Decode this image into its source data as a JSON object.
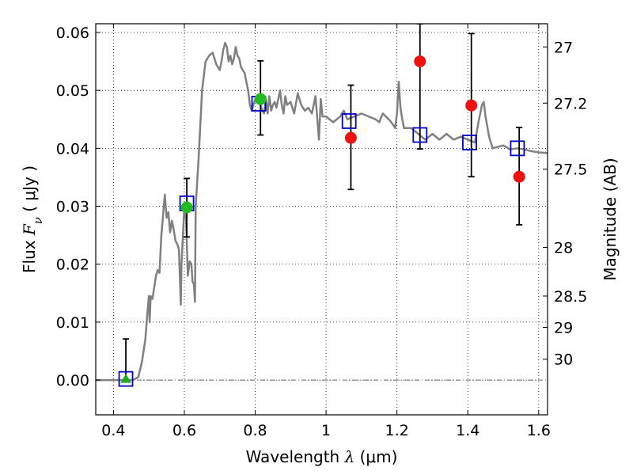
{
  "chart_data": {
    "type": "scatter",
    "xlabel": {
      "prefix": "Wavelength  ",
      "symbol": "λ",
      "unit": " (μm)"
    },
    "ylabel": {
      "prefix": "Flux  ",
      "symbol": "F",
      "subscript": "ν",
      "unit": "  ( μJy )"
    },
    "y2label": "Magnitude (AB)",
    "xlim": [
      0.35,
      1.625
    ],
    "ylim": [
      -0.006,
      0.0615
    ],
    "grid": true,
    "x_ticks": [
      {
        "value": 0.4,
        "label": "0.4"
      },
      {
        "value": 0.6,
        "label": "0.6"
      },
      {
        "value": 0.8,
        "label": "0.8"
      },
      {
        "value": 1.0,
        "label": "1"
      },
      {
        "value": 1.2,
        "label": "1.2"
      },
      {
        "value": 1.4,
        "label": "1.4"
      },
      {
        "value": 1.6,
        "label": "1.6"
      }
    ],
    "y_ticks": [
      {
        "value": 0.0,
        "label": "0.00"
      },
      {
        "value": 0.01,
        "label": "0.01"
      },
      {
        "value": 0.02,
        "label": "0.02"
      },
      {
        "value": 0.03,
        "label": "0.03"
      },
      {
        "value": 0.04,
        "label": "0.04"
      },
      {
        "value": 0.05,
        "label": "0.05"
      },
      {
        "value": 0.06,
        "label": "0.06"
      }
    ],
    "y2_ticks": [
      {
        "flux": 0.0575,
        "label": "27"
      },
      {
        "flux": 0.0478,
        "label": "27.2"
      },
      {
        "flux": 0.0364,
        "label": "27.5"
      },
      {
        "flux": 0.0229,
        "label": "28"
      },
      {
        "flux": 0.0145,
        "label": "28.5"
      },
      {
        "flux": 0.0091,
        "label": "29"
      },
      {
        "flux": 0.0036,
        "label": "30"
      }
    ],
    "series": [
      {
        "kind": "line",
        "color": "#808080",
        "points": [
          [
            0.35,
            0.0
          ],
          [
            0.44,
            0.0
          ],
          [
            0.455,
            0.0
          ],
          [
            0.47,
            0.0005
          ],
          [
            0.48,
            0.003
          ],
          [
            0.49,
            0.007
          ],
          [
            0.495,
            0.011
          ],
          [
            0.5,
            0.0145
          ],
          [
            0.502,
            0.01
          ],
          [
            0.505,
            0.0145
          ],
          [
            0.51,
            0.014
          ],
          [
            0.515,
            0.016
          ],
          [
            0.52,
            0.018
          ],
          [
            0.525,
            0.019
          ],
          [
            0.53,
            0.0185
          ],
          [
            0.535,
            0.025
          ],
          [
            0.54,
            0.0285
          ],
          [
            0.545,
            0.032
          ],
          [
            0.55,
            0.028
          ],
          [
            0.555,
            0.029
          ],
          [
            0.56,
            0.0255
          ],
          [
            0.565,
            0.0275
          ],
          [
            0.57,
            0.026
          ],
          [
            0.575,
            0.024
          ],
          [
            0.58,
            0.0235
          ],
          [
            0.585,
            0.0225
          ],
          [
            0.59,
            0.013
          ],
          [
            0.592,
            0.02
          ],
          [
            0.6,
            0.03
          ],
          [
            0.605,
            0.0275
          ],
          [
            0.61,
            0.018
          ],
          [
            0.615,
            0.0205
          ],
          [
            0.62,
            0.02
          ],
          [
            0.623,
            0.017
          ],
          [
            0.627,
            0.0165
          ],
          [
            0.63,
            0.0135
          ],
          [
            0.632,
            0.03
          ],
          [
            0.64,
            0.038
          ],
          [
            0.65,
            0.05
          ],
          [
            0.66,
            0.055
          ],
          [
            0.67,
            0.056
          ],
          [
            0.68,
            0.0565
          ],
          [
            0.69,
            0.0545
          ],
          [
            0.7,
            0.0535
          ],
          [
            0.705,
            0.055
          ],
          [
            0.71,
            0.057
          ],
          [
            0.715,
            0.0582
          ],
          [
            0.72,
            0.0575
          ],
          [
            0.725,
            0.055
          ],
          [
            0.73,
            0.056
          ],
          [
            0.735,
            0.0545
          ],
          [
            0.74,
            0.0555
          ],
          [
            0.745,
            0.0575
          ],
          [
            0.75,
            0.056
          ],
          [
            0.755,
            0.0555
          ],
          [
            0.76,
            0.054
          ],
          [
            0.77,
            0.053
          ],
          [
            0.78,
            0.05
          ],
          [
            0.785,
            0.0475
          ],
          [
            0.79,
            0.0465
          ],
          [
            0.8,
            0.0485
          ],
          [
            0.805,
            0.049
          ],
          [
            0.81,
            0.048
          ],
          [
            0.815,
            0.0475
          ],
          [
            0.82,
            0.0465
          ],
          [
            0.825,
            0.046
          ],
          [
            0.83,
            0.0485
          ],
          [
            0.835,
            0.046
          ],
          [
            0.84,
            0.049
          ],
          [
            0.845,
            0.0465
          ],
          [
            0.85,
            0.0475
          ],
          [
            0.855,
            0.048
          ],
          [
            0.86,
            0.047
          ],
          [
            0.87,
            0.05
          ],
          [
            0.875,
            0.0475
          ],
          [
            0.88,
            0.046
          ],
          [
            0.885,
            0.049
          ],
          [
            0.89,
            0.0475
          ],
          [
            0.9,
            0.048
          ],
          [
            0.91,
            0.046
          ],
          [
            0.92,
            0.0495
          ],
          [
            0.93,
            0.0475
          ],
          [
            0.94,
            0.0465
          ],
          [
            0.95,
            0.047
          ],
          [
            0.96,
            0.046
          ],
          [
            0.97,
            0.049
          ],
          [
            0.98,
            0.0415
          ],
          [
            0.985,
            0.0485
          ],
          [
            0.99,
            0.0455
          ],
          [
            1.0,
            0.0455
          ],
          [
            1.02,
            0.0445
          ],
          [
            1.04,
            0.0455
          ],
          [
            1.05,
            0.0465
          ],
          [
            1.06,
            0.045
          ],
          [
            1.08,
            0.0455
          ],
          [
            1.1,
            0.046
          ],
          [
            1.12,
            0.0455
          ],
          [
            1.14,
            0.045
          ],
          [
            1.15,
            0.0445
          ],
          [
            1.16,
            0.046
          ],
          [
            1.18,
            0.0448
          ],
          [
            1.19,
            0.044
          ],
          [
            1.195,
            0.0435
          ],
          [
            1.2,
            0.046
          ],
          [
            1.205,
            0.0515
          ],
          [
            1.21,
            0.047
          ],
          [
            1.215,
            0.045
          ],
          [
            1.22,
            0.0435
          ],
          [
            1.24,
            0.0435
          ],
          [
            1.26,
            0.0425
          ],
          [
            1.28,
            0.0415
          ],
          [
            1.3,
            0.0425
          ],
          [
            1.32,
            0.0415
          ],
          [
            1.34,
            0.0425
          ],
          [
            1.36,
            0.0415
          ],
          [
            1.38,
            0.042
          ],
          [
            1.4,
            0.0415
          ],
          [
            1.42,
            0.041
          ],
          [
            1.43,
            0.0445
          ],
          [
            1.44,
            0.0475
          ],
          [
            1.445,
            0.048
          ],
          [
            1.45,
            0.0455
          ],
          [
            1.46,
            0.042
          ],
          [
            1.47,
            0.04
          ],
          [
            1.5,
            0.0405
          ],
          [
            1.52,
            0.0398
          ],
          [
            1.54,
            0.04
          ],
          [
            1.56,
            0.0398
          ],
          [
            1.58,
            0.0395
          ],
          [
            1.6,
            0.0393
          ],
          [
            1.625,
            0.0392
          ]
        ]
      },
      {
        "kind": "open-square",
        "color": "#0000cc",
        "points": [
          [
            0.435,
            0.0002
          ],
          [
            0.607,
            0.0305
          ],
          [
            0.81,
            0.0477
          ],
          [
            1.065,
            0.0447
          ],
          [
            1.265,
            0.0423
          ],
          [
            1.405,
            0.041
          ],
          [
            1.54,
            0.04
          ]
        ]
      },
      {
        "kind": "green-triangle",
        "color": "#22aa22",
        "points": [
          [
            0.435,
            0.0
          ]
        ]
      },
      {
        "kind": "green-circle",
        "color": "#22bb22",
        "points": [
          [
            0.607,
            0.0298
          ],
          [
            0.815,
            0.0485
          ]
        ]
      },
      {
        "kind": "red-circle",
        "color": "#ee1111",
        "points": [
          [
            1.07,
            0.0418
          ],
          [
            1.265,
            0.055
          ],
          [
            1.41,
            0.0474
          ],
          [
            1.545,
            0.0351
          ]
        ]
      }
    ],
    "error_bars": [
      {
        "x": 0.435,
        "low": 0.0,
        "high": 0.0071
      },
      {
        "x": 0.607,
        "low": 0.0247,
        "high": 0.0348
      },
      {
        "x": 0.815,
        "low": 0.0423,
        "high": 0.0551
      },
      {
        "x": 1.07,
        "low": 0.0329,
        "high": 0.0509
      },
      {
        "x": 1.265,
        "low": 0.0399,
        "high": 0.0615
      },
      {
        "x": 1.41,
        "low": 0.0351,
        "high": 0.0598
      },
      {
        "x": 1.545,
        "low": 0.0268,
        "high": 0.0436
      }
    ]
  }
}
